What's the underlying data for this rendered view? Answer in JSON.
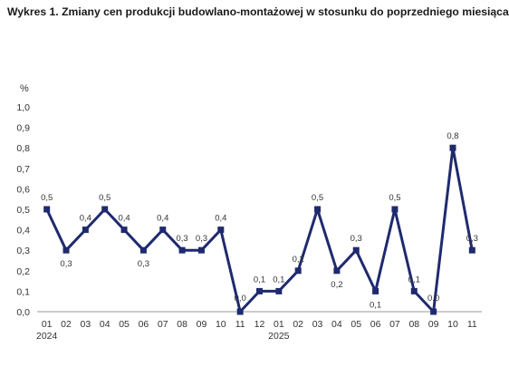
{
  "title": "Wykres 1. Zmiany cen produkcji budowlano-montażowej w stosunku do poprzedniego miesiąca",
  "chart_data": {
    "type": "line",
    "title": "Wykres 1. Zmiany cen produkcji budowlano-montażowej w stosunku do poprzedniego miesiąca",
    "ylabel": "%",
    "xlabel": "",
    "ylim": [
      0,
      1
    ],
    "yticks": [
      "0,0",
      "0,1",
      "0,2",
      "0,3",
      "0,4",
      "0,5",
      "0,6",
      "0,7",
      "0,8",
      "0,9",
      "1,0"
    ],
    "categories": [
      "01",
      "02",
      "03",
      "04",
      "05",
      "06",
      "07",
      "08",
      "09",
      "10",
      "11",
      "12",
      "01",
      "02",
      "03",
      "04",
      "05",
      "06",
      "07",
      "08",
      "09",
      "10",
      "11"
    ],
    "year_labels": [
      {
        "index": 0,
        "label": "2024"
      },
      {
        "index": 12,
        "label": "2025"
      }
    ],
    "values": [
      0.5,
      0.3,
      0.4,
      0.5,
      0.4,
      0.3,
      0.4,
      0.3,
      0.3,
      0.4,
      0.0,
      0.1,
      0.1,
      0.2,
      0.5,
      0.2,
      0.3,
      0.1,
      0.5,
      0.1,
      0.0,
      0.8,
      0.3
    ],
    "data_labels": [
      "0,5",
      "0,3",
      "0,4",
      "0,5",
      "0,4",
      "0,3",
      "0,4",
      "0,3",
      "0,3",
      "0,4",
      "0,0",
      "0,1",
      "0,1",
      "0,2",
      "0,5",
      "0,2",
      "0,3",
      "0,1",
      "0,5",
      "0,1",
      "0,0",
      "0,8",
      "0,3"
    ],
    "grid": false,
    "legend": "none",
    "colors": {
      "line": "#1f2a6e",
      "axis": "#9a9a9a",
      "text": "#333333"
    }
  }
}
